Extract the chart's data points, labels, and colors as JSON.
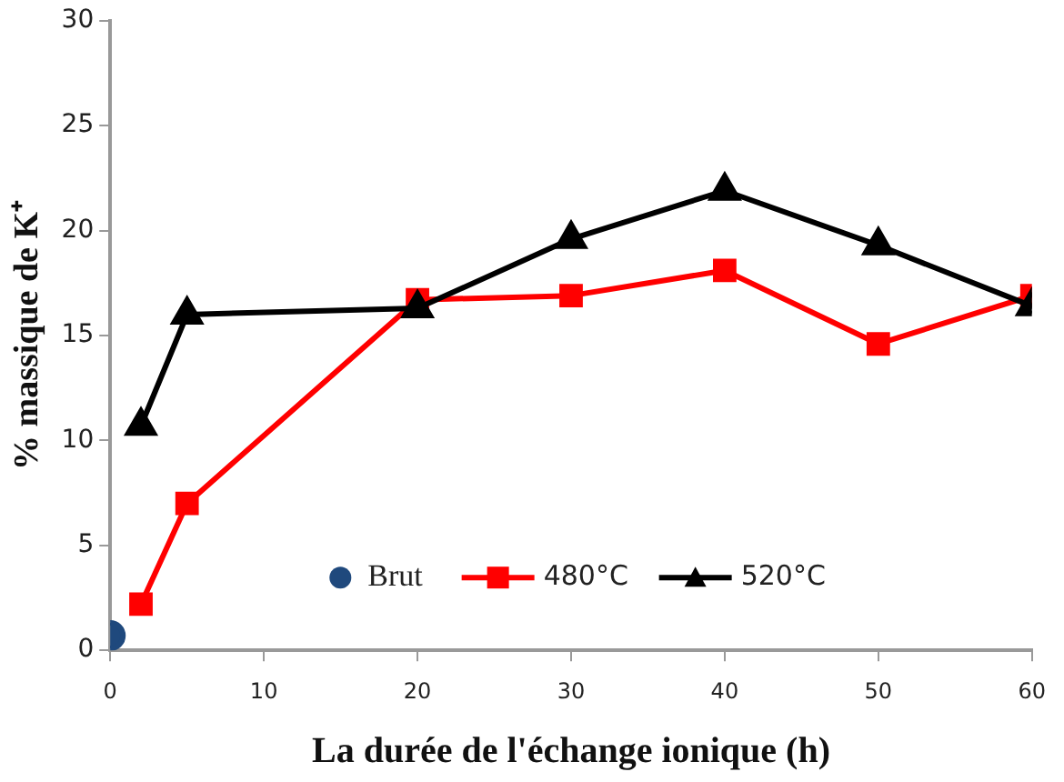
{
  "chart_data": {
    "type": "line",
    "xlabel": "La durée de l'échange ionique (h)",
    "ylabel": "% massique de K⁺",
    "xlim": [
      0,
      60
    ],
    "xticks": [
      0,
      10,
      20,
      30,
      40,
      50,
      60
    ],
    "ylim": [
      0,
      30
    ],
    "yticks": [
      0,
      5,
      10,
      15,
      20,
      25,
      30
    ],
    "grid": false,
    "legend": "bottom",
    "series": [
      {
        "name": "Brut",
        "type": "scatter",
        "marker": "circle",
        "color": "#1f497d",
        "x": [
          0
        ],
        "values": [
          0.7
        ]
      },
      {
        "name": "480°C",
        "marker": "square",
        "color": "#ff0000",
        "x": [
          2,
          5,
          20,
          30,
          40,
          50,
          60
        ],
        "values": [
          2.2,
          7,
          16.7,
          16.9,
          18.1,
          14.6,
          16.9
        ]
      },
      {
        "name": "520°C",
        "marker": "triangle",
        "color": "#000000",
        "x": [
          2,
          5,
          20,
          30,
          40,
          50,
          60
        ],
        "values": [
          10.7,
          16,
          16.3,
          19.6,
          21.9,
          19.3,
          16.4
        ]
      }
    ]
  }
}
